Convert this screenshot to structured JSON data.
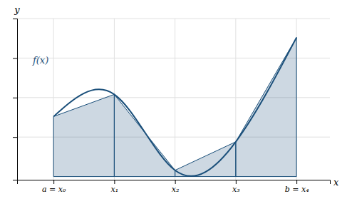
{
  "chart_data": {
    "type": "area",
    "x": [
      0,
      1,
      2,
      3,
      4
    ],
    "values": [
      0.38,
      0.52,
      0.04,
      0.22,
      0.88
    ],
    "color": "#1a4f7a",
    "xlim": [
      -0.6,
      4.55
    ],
    "ylim": [
      -0.02,
      1.0
    ],
    "xticks": [
      {
        "value": 0,
        "label": "a = x₀"
      },
      {
        "value": 1,
        "label": "x₁"
      },
      {
        "value": 2,
        "label": "x₂"
      },
      {
        "value": 3,
        "label": "x₃"
      },
      {
        "value": 4,
        "label": "b = x₄"
      }
    ],
    "yticks": [
      0.25,
      0.5,
      0.75,
      1.0
    ],
    "grid": true,
    "tick_labels": "x",
    "xlabel": "x",
    "ylabel": "y",
    "annotation": "f(x)"
  }
}
